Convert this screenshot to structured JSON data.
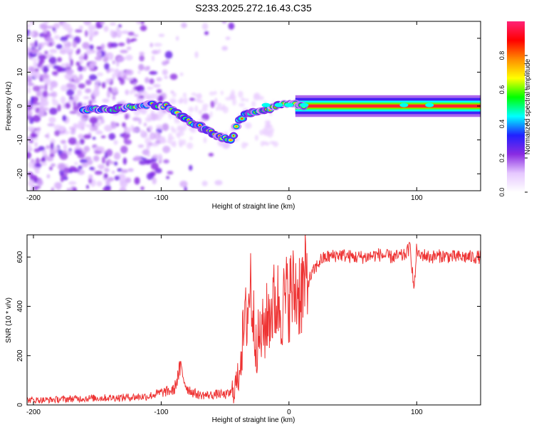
{
  "chart_data": [
    {
      "type": "heatmap",
      "title": "S233.2025.272.16.43.C35",
      "xlabel": "Height of straight line (km)",
      "ylabel": "Frequency (Hz)",
      "xlim": [
        -205,
        150
      ],
      "ylim": [
        -25,
        25
      ],
      "x_ticks": [
        -200,
        -100,
        0,
        100
      ],
      "y_ticks": [
        -20,
        -10,
        0,
        10,
        20
      ],
      "colorbar": {
        "label": "Normalized spectral amplitude",
        "range": [
          0,
          1
        ],
        "ticks": [
          0,
          0.2,
          0.4,
          0.6,
          0.8
        ],
        "tick_labels": [
          "0.0",
          "0.2",
          "0.4",
          "0.6",
          "0.8"
        ],
        "colors": [
          "#ffffff",
          "#e6c8ff",
          "#8a2be2",
          "#2020ff",
          "#00ffff",
          "#00ff00",
          "#ffff00",
          "#ff8c00",
          "#ff0000",
          "#ff2277"
        ]
      },
      "ridge": {
        "name": "frequency ridge",
        "x": [
          -160,
          -140,
          -120,
          -110,
          -100,
          -95,
          -85,
          -80,
          -75,
          -70,
          -65,
          -60,
          -55,
          -50,
          -45,
          -40,
          -35,
          -30,
          -20,
          -10,
          0,
          10,
          20,
          40,
          60,
          80,
          90,
          100,
          110,
          120,
          140,
          150
        ],
        "y": [
          -1,
          -1,
          0,
          0.5,
          0,
          0,
          -3,
          -4,
          -5,
          -6,
          -7,
          -8,
          -9,
          -9.5,
          -10,
          -5,
          -2.5,
          -2,
          -1.5,
          0,
          1,
          0,
          0,
          0,
          0,
          0,
          0,
          0,
          0,
          0,
          0,
          0
        ]
      }
    },
    {
      "type": "line",
      "title": "",
      "xlabel": "Height of straight line (km)",
      "ylabel": "SNR (10 * v/v)",
      "xlim": [
        -205,
        150
      ],
      "ylim": [
        0,
        690
      ],
      "x_ticks": [
        -200,
        -100,
        0,
        100
      ],
      "y_ticks": [
        0,
        200,
        400,
        600
      ],
      "color": "#ee3333",
      "series": [
        {
          "name": "SNR",
          "x": [
            -205,
            -190,
            -170,
            -150,
            -130,
            -110,
            -100,
            -90,
            -85,
            -80,
            -75,
            -70,
            -60,
            -55,
            -50,
            -45,
            -40,
            -38,
            -35,
            -32,
            -30,
            -28,
            -25,
            -20,
            -15,
            -10,
            -5,
            0,
            5,
            10,
            15,
            20,
            25,
            30,
            40,
            50,
            60,
            70,
            80,
            90,
            95,
            98,
            100,
            102,
            105,
            110,
            120,
            130,
            140,
            150
          ],
          "y": [
            20,
            20,
            25,
            28,
            30,
            35,
            50,
            60,
            150,
            70,
            50,
            40,
            40,
            45,
            40,
            50,
            100,
            200,
            300,
            400,
            500,
            350,
            250,
            300,
            380,
            420,
            400,
            450,
            460,
            470,
            500,
            550,
            590,
            600,
            610,
            600,
            600,
            610,
            600,
            605,
            640,
            460,
            640,
            600,
            610,
            600,
            605,
            600,
            600,
            600
          ]
        }
      ]
    }
  ]
}
